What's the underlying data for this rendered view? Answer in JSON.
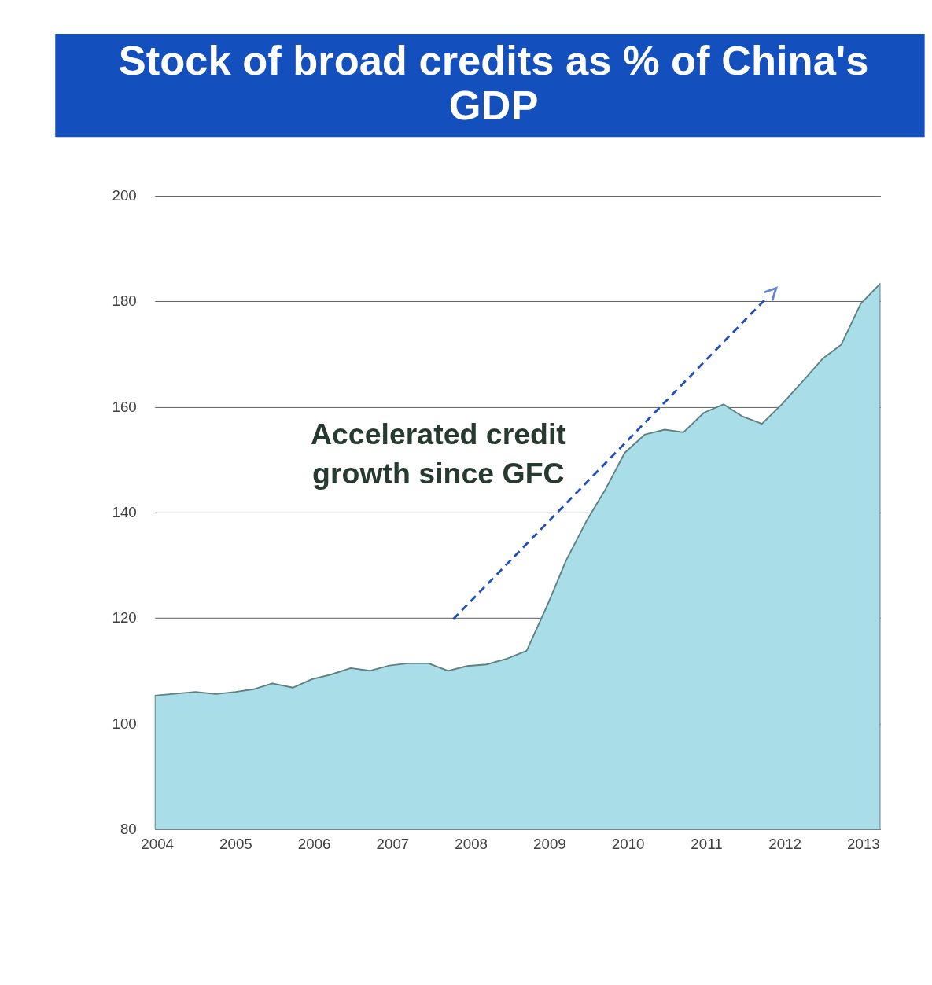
{
  "chart_data": {
    "type": "area",
    "title": "Stock of broad credits as % of China's GDP",
    "x": [
      2003.97,
      2004.49,
      2004.75,
      2005.0,
      2005.23,
      2005.47,
      2005.73,
      2005.97,
      2006.22,
      2006.47,
      2006.71,
      2006.96,
      2007.2,
      2007.46,
      2007.71,
      2007.95,
      2008.2,
      2008.46,
      2008.71,
      2008.98,
      2009.21,
      2009.47,
      2009.72,
      2009.96,
      2010.22,
      2010.47,
      2010.71,
      2010.97,
      2011.22,
      2011.46,
      2011.71,
      2011.97,
      2012.22,
      2012.48,
      2012.72,
      2012.97,
      2013.22
    ],
    "series": [
      {
        "color": "#a9dde7",
        "values": [
          105.3,
          106,
          105.6,
          106,
          106.5,
          107.6,
          106.8,
          108.4,
          109.3,
          110.5,
          110,
          111,
          111.4,
          111.4,
          110,
          110.9,
          111.2,
          112.3,
          113.8,
          122.6,
          130.8,
          138.3,
          144.5,
          151.3,
          154.8,
          155.7,
          155.2,
          158.9,
          160.5,
          158.2,
          156.8,
          160.6,
          164.7,
          169.1,
          171.8,
          179.6,
          183.4
        ]
      }
    ],
    "xlim": [
      2003.97,
      2013.22
    ],
    "xticks": [
      2004,
      2005,
      2006,
      2007,
      2008,
      2009,
      2010,
      2011,
      2012,
      2013
    ],
    "ylim": [
      80,
      200
    ],
    "yticks": [
      80,
      100,
      120,
      140,
      160,
      180,
      200
    ],
    "grid": "y",
    "annotations": [
      "Accelerated credit growth since GFC"
    ]
  }
}
